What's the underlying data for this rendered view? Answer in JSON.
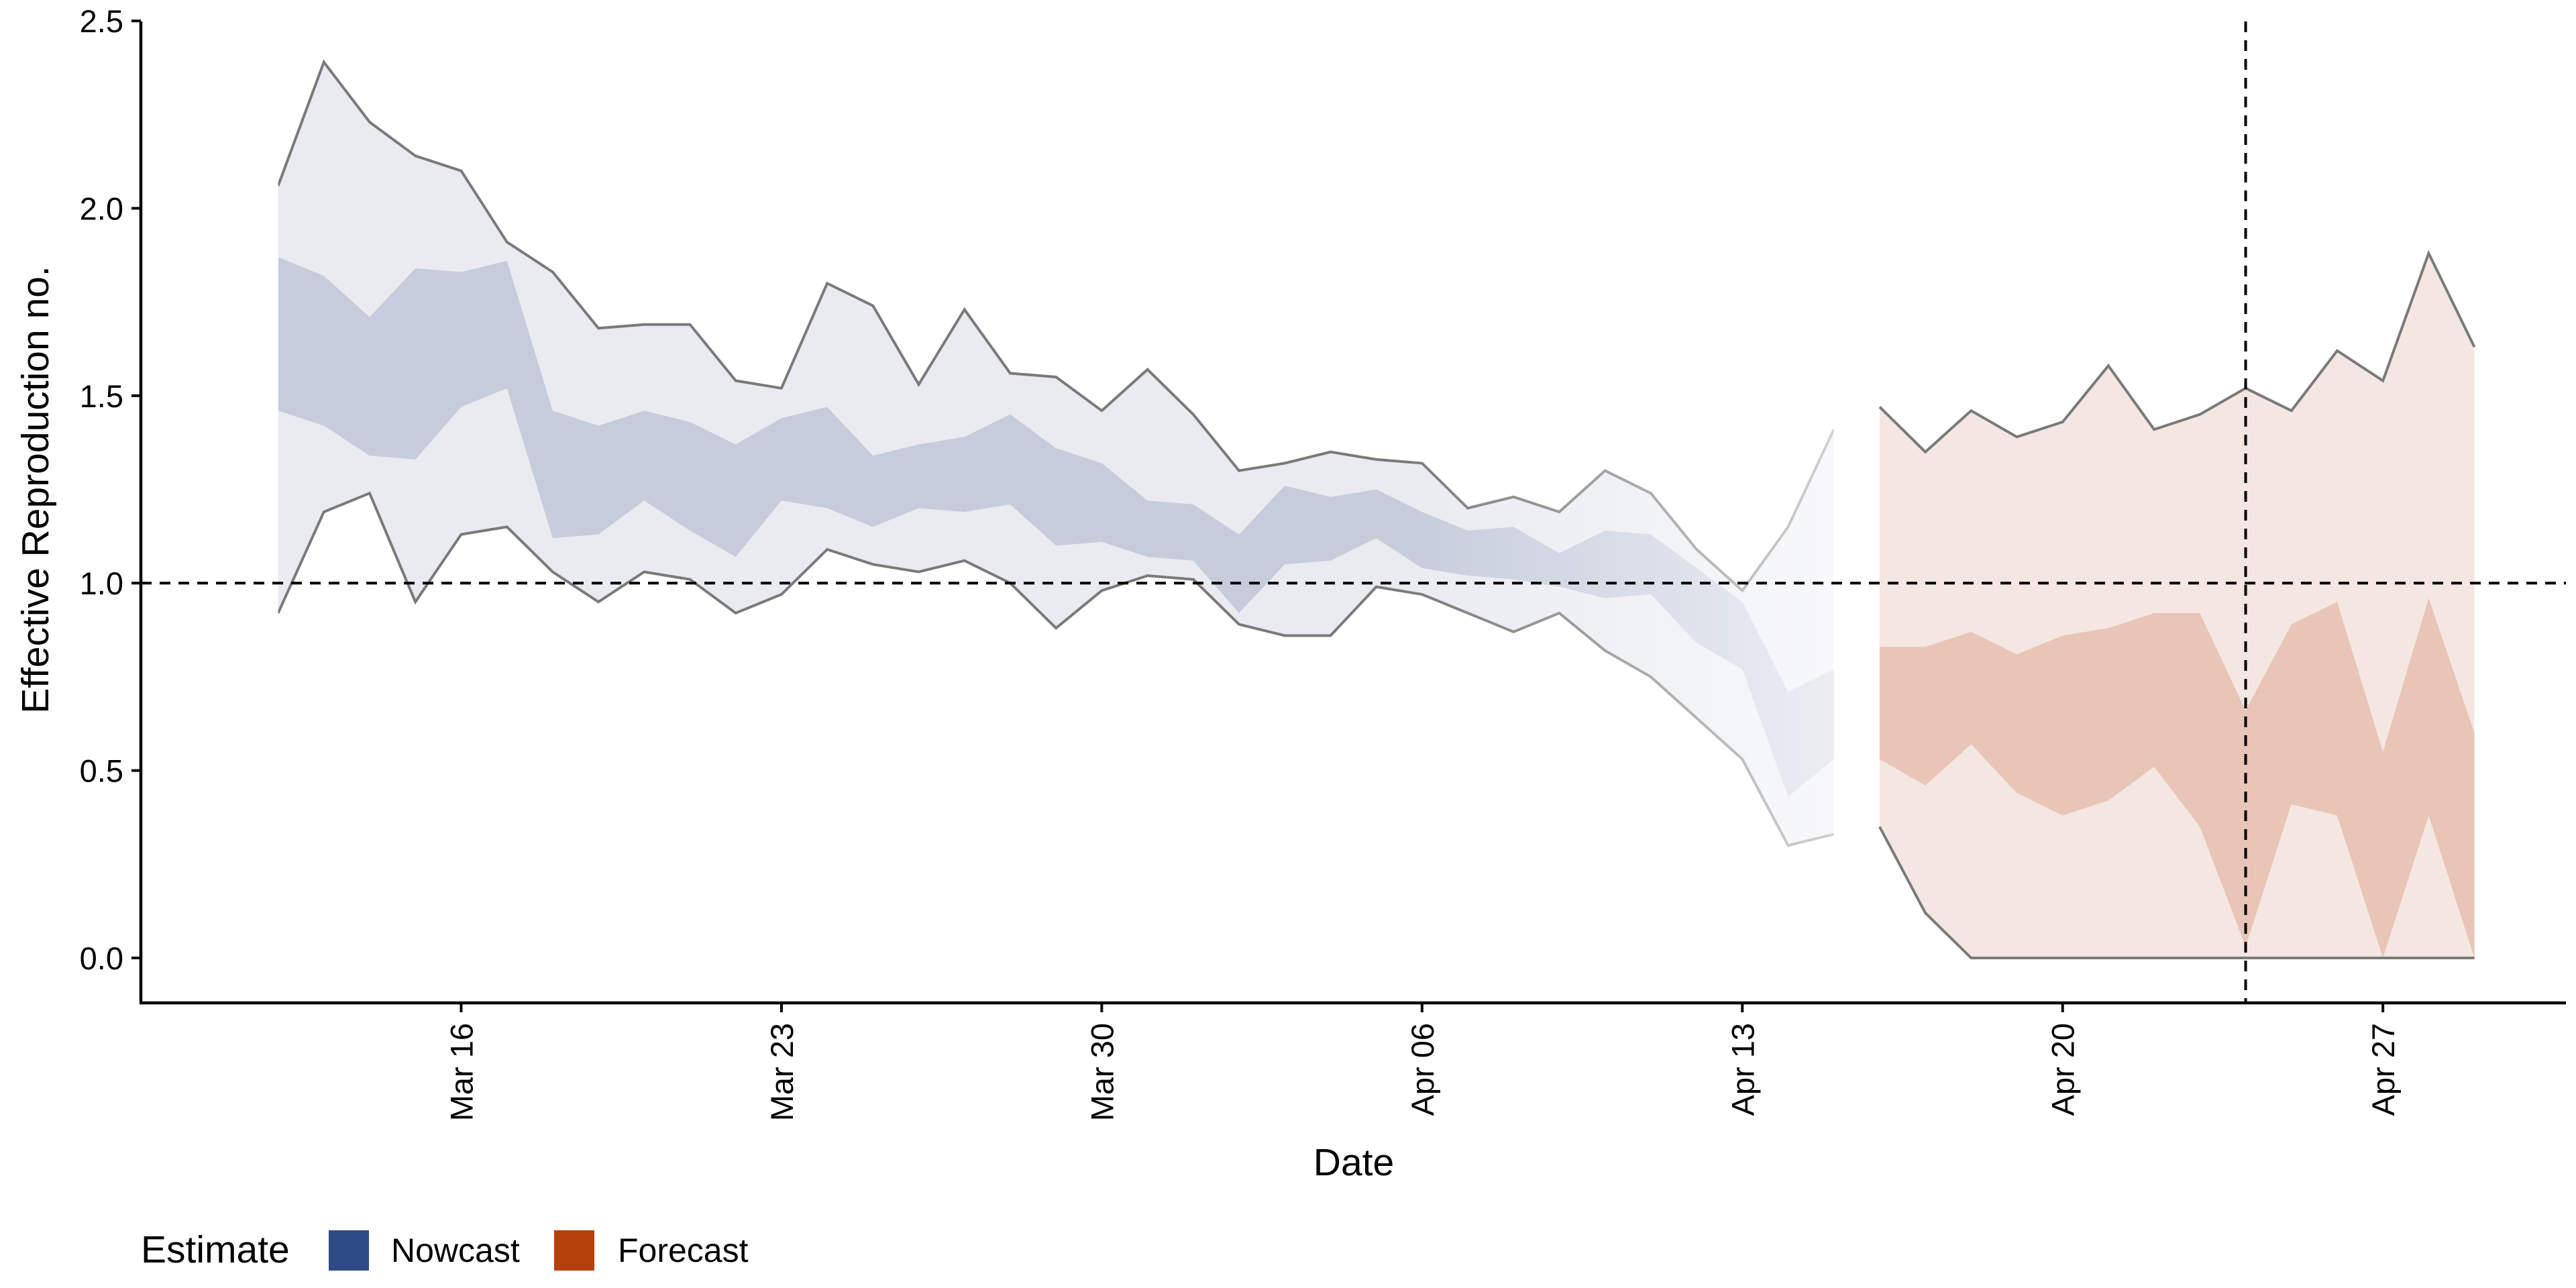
{
  "chart_data": {
    "type": "area",
    "xlabel": "Date",
    "ylabel": "Effective Reproduction no.",
    "ylim": [
      -0.12,
      2.52
    ],
    "xlim": [
      "2020-03-09",
      "2020-05-01"
    ],
    "y_ticks": [
      0.0,
      0.5,
      1.0,
      1.5,
      2.0,
      2.5
    ],
    "y_tick_labels": [
      "0.0",
      "0.5",
      "1.0",
      "1.5",
      "2.0",
      "2.5"
    ],
    "x_ticks": [
      "2020-03-16",
      "2020-03-23",
      "2020-03-30",
      "2020-04-06",
      "2020-04-13",
      "2020-04-20",
      "2020-04-27"
    ],
    "x_tick_labels": [
      "Mar 16",
      "Mar 23",
      "Mar 30",
      "Apr 06",
      "Apr 13",
      "Apr 20",
      "Apr 27"
    ],
    "grid": false,
    "reference_lines": [
      {
        "axis": "y",
        "value": 1.0,
        "style": "dashed"
      },
      {
        "axis": "x",
        "value": "2020-04-24",
        "style": "dashed"
      }
    ],
    "legend": {
      "title": "Estimate",
      "position": "bottom-left",
      "entries": [
        {
          "label": "Nowcast",
          "color": "#2E4A87"
        },
        {
          "label": "Forecast",
          "color": "#B5400B"
        }
      ]
    },
    "series": [
      {
        "name": "Nowcast",
        "color": "#2E4A87",
        "x": [
          "2020-03-12",
          "2020-03-13",
          "2020-03-14",
          "2020-03-15",
          "2020-03-16",
          "2020-03-17",
          "2020-03-18",
          "2020-03-19",
          "2020-03-20",
          "2020-03-21",
          "2020-03-22",
          "2020-03-23",
          "2020-03-24",
          "2020-03-25",
          "2020-03-26",
          "2020-03-27",
          "2020-03-28",
          "2020-03-29",
          "2020-03-30",
          "2020-03-31",
          "2020-04-01",
          "2020-04-02",
          "2020-04-03",
          "2020-04-04",
          "2020-04-05",
          "2020-04-06",
          "2020-04-07",
          "2020-04-08",
          "2020-04-09",
          "2020-04-10",
          "2020-04-11",
          "2020-04-12",
          "2020-04-13",
          "2020-04-14",
          "2020-04-15"
        ],
        "lower_90": [
          0.92,
          1.19,
          1.24,
          0.95,
          1.13,
          1.15,
          1.03,
          0.95,
          1.03,
          1.01,
          0.92,
          0.97,
          1.09,
          1.05,
          1.03,
          1.06,
          1.0,
          0.88,
          0.98,
          1.02,
          1.01,
          0.89,
          0.86,
          0.86,
          0.99,
          0.97,
          0.92,
          0.87,
          0.92,
          0.82,
          0.75,
          0.64,
          0.53,
          0.3,
          0.33
        ],
        "upper_90": [
          2.06,
          2.39,
          2.23,
          2.14,
          2.1,
          1.91,
          1.83,
          1.68,
          1.69,
          1.69,
          1.54,
          1.52,
          1.8,
          1.74,
          1.53,
          1.73,
          1.56,
          1.55,
          1.46,
          1.57,
          1.45,
          1.3,
          1.32,
          1.35,
          1.33,
          1.32,
          1.2,
          1.23,
          1.19,
          1.3,
          1.24,
          1.09,
          0.98,
          1.15,
          1.41
        ],
        "lower_50": [
          1.46,
          1.42,
          1.34,
          1.33,
          1.47,
          1.52,
          1.12,
          1.13,
          1.22,
          1.14,
          1.07,
          1.22,
          1.2,
          1.15,
          1.2,
          1.19,
          1.21,
          1.1,
          1.11,
          1.07,
          1.06,
          0.92,
          1.05,
          1.06,
          1.12,
          1.04,
          1.02,
          1.01,
          0.99,
          0.96,
          0.97,
          0.84,
          0.77,
          0.43,
          0.53
        ],
        "upper_50": [
          1.87,
          1.82,
          1.71,
          1.84,
          1.83,
          1.86,
          1.46,
          1.42,
          1.46,
          1.43,
          1.37,
          1.44,
          1.47,
          1.34,
          1.37,
          1.39,
          1.45,
          1.36,
          1.32,
          1.22,
          1.21,
          1.13,
          1.26,
          1.23,
          1.25,
          1.19,
          1.14,
          1.15,
          1.08,
          1.14,
          1.13,
          1.04,
          0.95,
          0.71,
          0.77
        ]
      },
      {
        "name": "Forecast",
        "color": "#B5400B",
        "x": [
          "2020-04-16",
          "2020-04-17",
          "2020-04-18",
          "2020-04-19",
          "2020-04-20",
          "2020-04-21",
          "2020-04-22",
          "2020-04-23",
          "2020-04-24",
          "2020-04-25",
          "2020-04-26",
          "2020-04-27",
          "2020-04-28",
          "2020-04-29"
        ],
        "lower_90": [
          0.35,
          0.12,
          0.0,
          0.0,
          0.0,
          0.0,
          0.0,
          0.0,
          0.0,
          0.0,
          0.0,
          0.0,
          0.0,
          0.0
        ],
        "upper_90": [
          1.47,
          1.35,
          1.46,
          1.39,
          1.43,
          1.58,
          1.41,
          1.45,
          1.52,
          1.46,
          1.62,
          1.54,
          1.88,
          1.63
        ],
        "lower_50": [
          0.53,
          0.46,
          0.57,
          0.44,
          0.38,
          0.42,
          0.51,
          0.35,
          0.03,
          0.41,
          0.38,
          0.0,
          0.38,
          0.0
        ],
        "upper_50": [
          0.83,
          0.83,
          0.87,
          0.81,
          0.86,
          0.88,
          0.92,
          0.92,
          0.66,
          0.89,
          0.95,
          0.55,
          0.96,
          0.6
        ]
      }
    ]
  }
}
